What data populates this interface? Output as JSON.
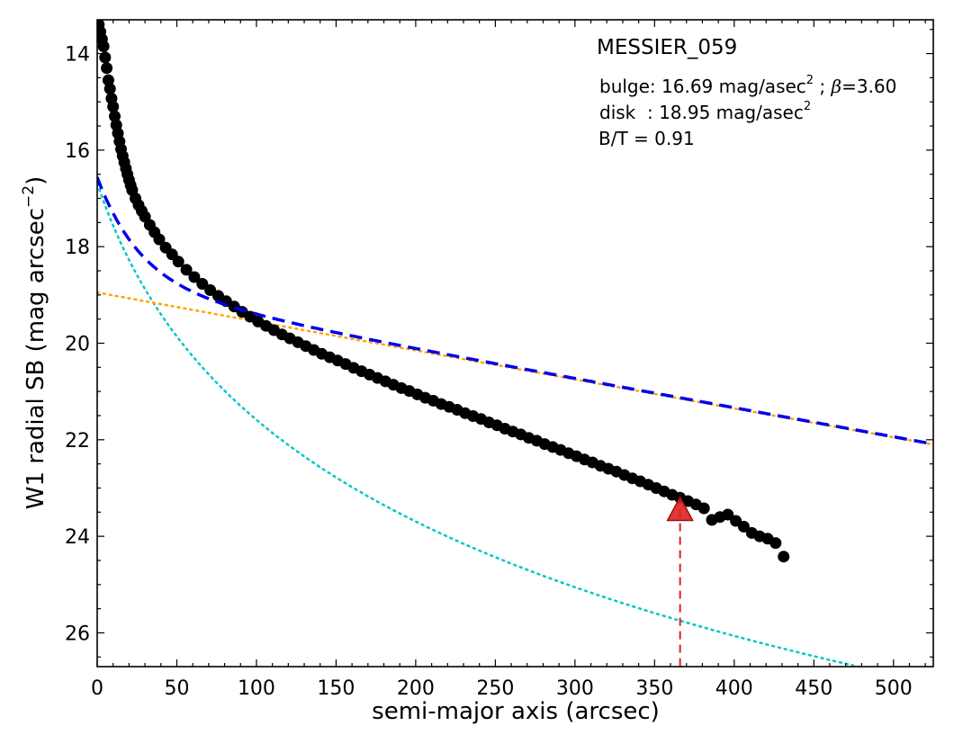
{
  "chart_data": {
    "type": "scatter",
    "title": "MESSIER_059",
    "xlabel": "semi-major axis (arcsec)",
    "ylabel": "W1 radial SB (mag arcsec",
    "ylabel_sup": "−2",
    "ylabel_close": ")",
    "xlim": [
      0,
      525
    ],
    "ylim": [
      26.7,
      13.3
    ],
    "y_inverted": true,
    "x_ticks": [
      0,
      50,
      100,
      150,
      200,
      250,
      300,
      350,
      400,
      450,
      500
    ],
    "x_tick_labels": [
      "0",
      "50",
      "100",
      "150",
      "200",
      "250",
      "300",
      "350",
      "400",
      "450",
      "500"
    ],
    "y_ticks": [
      14,
      16,
      18,
      20,
      22,
      24,
      26
    ],
    "y_tick_labels": [
      "14",
      "16",
      "18",
      "20",
      "22",
      "24",
      "26"
    ],
    "grid": false,
    "annotations": {
      "bulge": {
        "prefix": "bulge: 16.69 mag/asec",
        "sup": "2",
        "mid": " ; ",
        "beta": "β",
        "suffix": "=3.60"
      },
      "disk": {
        "prefix": "disk  : 18.95 mag/asec",
        "sup": "2"
      },
      "bt": "B/T = 0.91"
    },
    "colors": {
      "observed": "#000000",
      "total_fit": "#0000ee",
      "bulge": "#00c8c8",
      "disk": "#ffa500",
      "marker": "#dd2222"
    },
    "series": [
      {
        "kind": "observed-points",
        "x": [
          1,
          2,
          3,
          4,
          5,
          6,
          7,
          8,
          9,
          10,
          11,
          12,
          13,
          14,
          15,
          16,
          17,
          18,
          19,
          20,
          21,
          22,
          24,
          26,
          28,
          30,
          33,
          36,
          39,
          43,
          47,
          51,
          56,
          61,
          66,
          71,
          76,
          81,
          86,
          91,
          96,
          101,
          106,
          111,
          116,
          121,
          126,
          131,
          136,
          141,
          146,
          151,
          156,
          161,
          166,
          171,
          176,
          181,
          186,
          191,
          196,
          201,
          206,
          211,
          216,
          221,
          226,
          231,
          236,
          241,
          246,
          251,
          256,
          261,
          266,
          271,
          276,
          281,
          286,
          291,
          296,
          301,
          306,
          311,
          316,
          321,
          326,
          331,
          336,
          341,
          346,
          351,
          356,
          361,
          366,
          371,
          376,
          381,
          386,
          391,
          396,
          401,
          406,
          411,
          416,
          421,
          426,
          431
        ],
        "y": [
          13.4,
          13.55,
          13.7,
          13.85,
          14.08,
          14.3,
          14.55,
          14.73,
          14.93,
          15.1,
          15.3,
          15.48,
          15.65,
          15.82,
          15.98,
          16.12,
          16.25,
          16.38,
          16.5,
          16.62,
          16.73,
          16.83,
          17.0,
          17.14,
          17.26,
          17.38,
          17.55,
          17.7,
          17.85,
          18.02,
          18.16,
          18.31,
          18.48,
          18.63,
          18.77,
          18.9,
          19.02,
          19.13,
          19.24,
          19.35,
          19.45,
          19.55,
          19.64,
          19.73,
          19.82,
          19.9,
          19.98,
          20.06,
          20.14,
          20.22,
          20.29,
          20.36,
          20.43,
          20.51,
          20.58,
          20.65,
          20.72,
          20.79,
          20.86,
          20.93,
          20.99,
          21.06,
          21.13,
          21.19,
          21.26,
          21.32,
          21.38,
          21.45,
          21.51,
          21.57,
          21.64,
          21.7,
          21.77,
          21.83,
          21.89,
          21.96,
          22.02,
          22.09,
          22.15,
          22.21,
          22.28,
          22.34,
          22.41,
          22.47,
          22.54,
          22.6,
          22.66,
          22.73,
          22.8,
          22.86,
          22.93,
          23.0,
          23.07,
          23.14,
          23.2,
          23.27,
          23.34,
          23.42,
          23.66,
          23.6,
          23.55,
          23.68,
          23.8,
          23.93,
          24.0,
          24.05,
          24.14,
          24.42
        ]
      },
      {
        "kind": "total-fit",
        "mu_b": 16.69,
        "beta": 3.6,
        "mu_d": 18.95
      },
      {
        "kind": "bulge-component"
      },
      {
        "kind": "disk-component"
      }
    ],
    "marker": {
      "x": 366,
      "y": 23.45
    }
  }
}
